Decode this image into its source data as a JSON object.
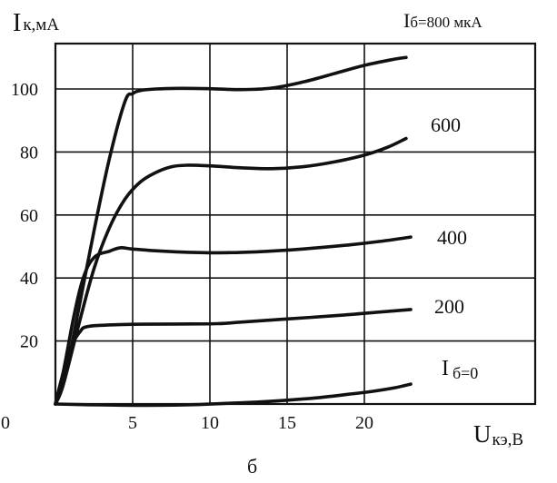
{
  "chart_data": {
    "type": "line",
    "title": "",
    "ylabel_main": "I",
    "ylabel_sub": "к,мА",
    "xlabel_main": "U",
    "xlabel_sub": "кэ,В",
    "caption": "б",
    "origin_label": "0",
    "xlim": [
      0,
      25
    ],
    "ylim": [
      0,
      115
    ],
    "x_ticks": [
      5,
      10,
      15,
      20
    ],
    "y_ticks": [
      20,
      40,
      60,
      80,
      100
    ],
    "grid": true,
    "series": [
      {
        "name": "Iб=800 мкА",
        "label_main": "I",
        "label_sub": "б=800 мкА",
        "x": [
          0,
          0.6,
          1.5,
          2.5,
          3.5,
          4.5,
          5,
          5.5,
          6.5,
          8,
          10,
          12,
          14,
          16,
          18,
          20,
          22,
          22.7
        ],
        "y": [
          0,
          8,
          30,
          55,
          78,
          96,
          98.5,
          99.5,
          100,
          100.2,
          100.1,
          99.8,
          100.3,
          102.2,
          104.8,
          107.5,
          109.5,
          110
        ]
      },
      {
        "name": "600",
        "label_main": "600",
        "label_sub": "",
        "x": [
          0,
          0.5,
          1.5,
          2.5,
          3.5,
          4.5,
          5.5,
          6.5,
          7.5,
          8.5,
          10,
          12,
          14,
          16,
          18,
          20,
          21.5,
          22.7
        ],
        "y": [
          0,
          6,
          25,
          43,
          56,
          65,
          70.5,
          73.5,
          75.3,
          75.8,
          75.6,
          75,
          74.7,
          75.3,
          76.8,
          79,
          81.5,
          84.3
        ]
      },
      {
        "name": "400",
        "label_main": "400",
        "label_sub": "",
        "x": [
          0,
          0.5,
          1.2,
          1.8,
          2.5,
          3.5,
          4.2,
          5,
          7,
          10,
          13,
          16,
          19,
          21,
          23
        ],
        "y": [
          0,
          10,
          28,
          40,
          46.5,
          48.5,
          49.6,
          49.2,
          48.5,
          48,
          48.3,
          49.2,
          50.5,
          51.6,
          53
        ]
      },
      {
        "name": "200",
        "label_main": "200",
        "label_sub": "",
        "x": [
          0,
          0.4,
          1,
          1.6,
          2,
          3,
          5,
          7.5,
          10.5,
          12,
          15,
          18,
          21,
          23
        ],
        "y": [
          0,
          8,
          18,
          23,
          24.5,
          25,
          25.3,
          25.4,
          25.5,
          26,
          27,
          28,
          29.2,
          30
        ]
      },
      {
        "name": "Iб=0",
        "label_main": "I",
        "label_sub": "б=0",
        "x": [
          0,
          3,
          6,
          9,
          11,
          13,
          15,
          17,
          19,
          20.5,
          22,
          23
        ],
        "y": [
          0,
          -0.3,
          -0.4,
          -0.2,
          0.2,
          0.6,
          1.2,
          2,
          3.1,
          4,
          5.2,
          6.3
        ]
      }
    ]
  }
}
